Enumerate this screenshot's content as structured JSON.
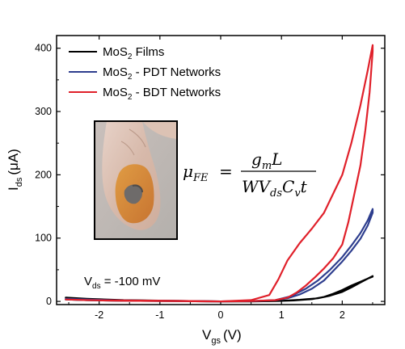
{
  "chart_data": {
    "type": "line",
    "xlabel": {
      "main": "V",
      "sub": "gs",
      "unit": "(V)"
    },
    "ylabel": {
      "main": "I",
      "sub": "ds",
      "unit": "(μA)"
    },
    "xlim": [
      -2.7,
      2.7
    ],
    "ylim": [
      -5,
      420
    ],
    "xticks": [
      -2,
      -1,
      0,
      1,
      2
    ],
    "xtick_labels": [
      "-2",
      "-1",
      "0",
      "1",
      "2"
    ],
    "yticks": [
      0,
      100,
      200,
      300,
      400
    ],
    "ytick_labels": [
      "0",
      "100",
      "200",
      "300",
      "400"
    ],
    "grid": false,
    "legend_position": "top-left",
    "legend": [
      {
        "prefix": "MoS",
        "sub": "2",
        "suffix": " Films"
      },
      {
        "prefix": "MoS",
        "sub": "2",
        "suffix": " - PDT Networks"
      },
      {
        "prefix": "MoS",
        "sub": "2",
        "suffix": " - BDT Networks"
      }
    ],
    "annotation": {
      "prefix": "V",
      "sub": "ds",
      "suffix": " = -100 mV"
    },
    "formula": {
      "lhs": "μ",
      "lhs_sub": "FE",
      "equals": "=",
      "numerator_main": "g",
      "numerator_sub": "m",
      "numerator_tail": "L",
      "denominator_a": "WV",
      "denominator_a_sub": "ds",
      "denominator_b": "C",
      "denominator_b_sub": "v",
      "denominator_c": "t"
    },
    "inset": {
      "kind": "photo",
      "subject": "flexible film on fingertip"
    },
    "series": [
      {
        "name": "MoS2 Films",
        "color": "#000000",
        "x": [
          -2.55,
          -2.2,
          -1.6,
          -0.8,
          0,
          0.6,
          1.0,
          1.3,
          1.6,
          1.8,
          2.0,
          2.15,
          2.3,
          2.42,
          2.5,
          2.5,
          2.42,
          2.3,
          2.15,
          2.0,
          1.85,
          1.7,
          1.5,
          1.2,
          0.9,
          0.5,
          0,
          -0.8,
          -1.6,
          -2.2,
          -2.55
        ],
        "y": [
          6,
          4,
          2,
          1,
          0,
          0.5,
          1,
          2.5,
          5,
          9,
          15,
          22,
          30,
          36,
          40,
          39,
          36,
          31,
          25,
          18,
          12,
          7,
          3.5,
          1.5,
          0.5,
          0,
          0,
          0.5,
          1,
          2,
          3
        ]
      },
      {
        "name": "MoS2 - PDT Networks",
        "color": "#2e3e8e",
        "x": [
          -2.55,
          -2.2,
          -1.6,
          -0.8,
          0,
          0.6,
          0.9,
          1.15,
          1.4,
          1.6,
          1.8,
          2.0,
          2.15,
          2.3,
          2.42,
          2.5,
          2.5,
          2.42,
          2.3,
          2.15,
          2.0,
          1.85,
          1.7,
          1.5,
          1.3,
          1.1,
          0.9,
          0.5,
          0,
          -0.8,
          -1.6,
          -2.2,
          -2.55
        ],
        "y": [
          4,
          3,
          1.5,
          1,
          0,
          0.5,
          2,
          8,
          20,
          33,
          50,
          70,
          88,
          108,
          128,
          146,
          140,
          120,
          99,
          80,
          63,
          48,
          33,
          20,
          11,
          5,
          2,
          0.5,
          0,
          0.5,
          1,
          2,
          3
        ]
      },
      {
        "name": "MoS2 - BDT Networks",
        "color": "#e0202a",
        "x": [
          -2.55,
          -2.2,
          -1.6,
          -0.8,
          0,
          0.5,
          0.8,
          0.95,
          1.1,
          1.3,
          1.5,
          1.7,
          1.85,
          2.0,
          2.15,
          2.3,
          2.42,
          2.5,
          2.5,
          2.45,
          2.38,
          2.3,
          2.2,
          2.1,
          2.0,
          1.85,
          1.7,
          1.55,
          1.4,
          1.25,
          1.1,
          0.9,
          0.5,
          0,
          -0.8,
          -1.6,
          -2.2,
          -2.55
        ],
        "y": [
          3,
          2,
          1.5,
          1,
          0,
          2,
          10,
          35,
          65,
          92,
          115,
          140,
          170,
          200,
          250,
          310,
          365,
          405,
          395,
          330,
          270,
          215,
          170,
          125,
          90,
          68,
          52,
          38,
          25,
          14,
          6,
          2,
          0.5,
          0,
          0.5,
          1,
          2,
          3
        ]
      }
    ]
  }
}
